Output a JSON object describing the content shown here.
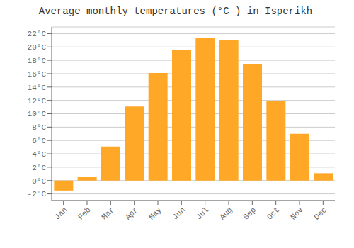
{
  "chart_data": {
    "type": "bar",
    "title": "Average monthly temperatures (°C ) in Isperikh",
    "categories": [
      "Jan",
      "Feb",
      "Mar",
      "Apr",
      "May",
      "Jun",
      "Jul",
      "Aug",
      "Sep",
      "Oct",
      "Nov",
      "Dec"
    ],
    "values": [
      -1.5,
      0.5,
      5.1,
      11.1,
      16.1,
      19.6,
      21.4,
      21.1,
      17.4,
      11.9,
      7.0,
      1.1
    ],
    "color": "#FFA726",
    "ylim": [
      -3,
      23
    ],
    "yticks": [
      {
        "value": -2,
        "label": "-2°C"
      },
      {
        "value": 0,
        "label": "0°C"
      },
      {
        "value": 2,
        "label": "2°C"
      },
      {
        "value": 4,
        "label": "4°C"
      },
      {
        "value": 6,
        "label": "6°C"
      },
      {
        "value": 8,
        "label": "8°C"
      },
      {
        "value": 10,
        "label": "10°C"
      },
      {
        "value": 12,
        "label": "12°C"
      },
      {
        "value": 14,
        "label": "14°C"
      },
      {
        "value": 16,
        "label": "16°C"
      },
      {
        "value": 18,
        "label": "18°C"
      },
      {
        "value": 20,
        "label": "20°C"
      },
      {
        "value": 22,
        "label": "22°C"
      }
    ],
    "grid": true
  }
}
